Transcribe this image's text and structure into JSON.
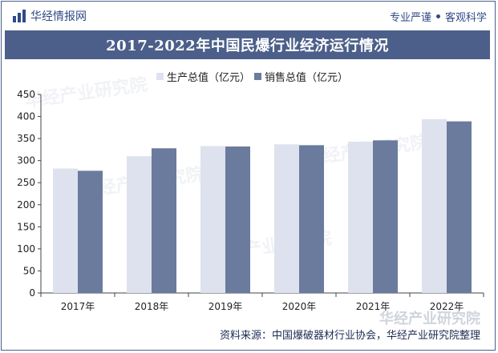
{
  "header": {
    "brand_name": "华经情报网",
    "tagline_left": "专业严谨",
    "tagline_right": "客观科学"
  },
  "title": "2017-2022年中国民爆行业经济运行情况",
  "source": "资料来源：中国爆破器材行业协会，华经产业研究院整理",
  "watermark": "华经产业研究院",
  "colors": {
    "series_production": "#dde2ee",
    "series_sales": "#6b7b9e",
    "title_bg": "#4c5f8a",
    "brand": "#2f4a86"
  },
  "chart_data": {
    "type": "bar",
    "categories": [
      "2017年",
      "2018年",
      "2019年",
      "2020年",
      "2021年",
      "2022年"
    ],
    "series": [
      {
        "name": "生产总值（亿元）",
        "values": [
          282,
          310,
          333,
          337,
          343,
          394
        ]
      },
      {
        "name": "销售总值（亿元）",
        "values": [
          277,
          328,
          332,
          335,
          346,
          389
        ]
      }
    ],
    "ylim": [
      0,
      450
    ],
    "yticks": [
      "0",
      "50",
      "100",
      "150",
      "200",
      "250",
      "300",
      "350",
      "400",
      "450"
    ],
    "legend_position": "top-center",
    "grid": false
  }
}
